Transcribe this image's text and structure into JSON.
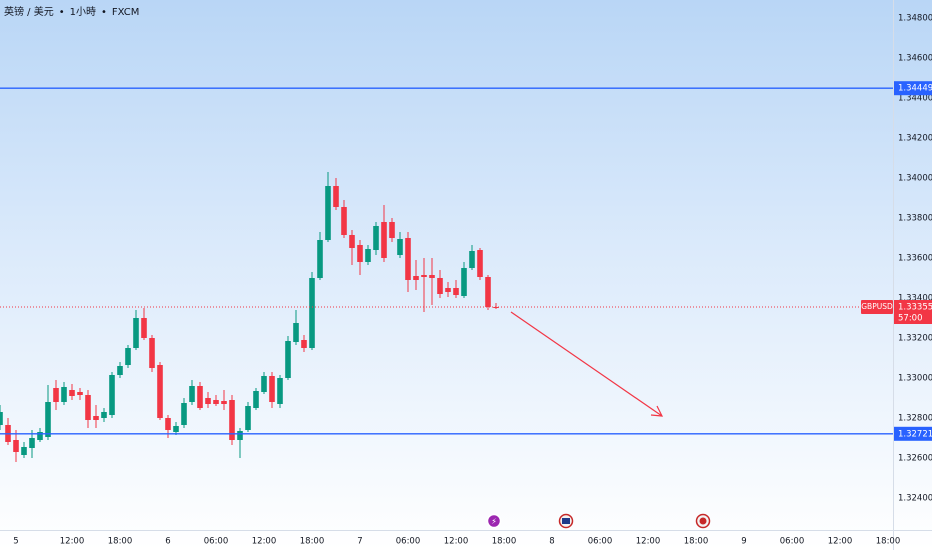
{
  "chart_data": {
    "type": "candlestick",
    "pair": "英镑 / 美元",
    "interval": "1小時",
    "source": "FXCM",
    "symbol": "GBPUSD",
    "countdown": "57:00",
    "up_color": "#089981",
    "down_color": "#f23645",
    "grid": false,
    "x": [
      3,
      4,
      5,
      6,
      7,
      8,
      9,
      10,
      11,
      12,
      13,
      14,
      15,
      16,
      17,
      18,
      19,
      20,
      21,
      22,
      23,
      24,
      25,
      26,
      27,
      28,
      29,
      30,
      31,
      32,
      33,
      34,
      35,
      36,
      37,
      38,
      39,
      40,
      41,
      42,
      43,
      44,
      45,
      46,
      47,
      48,
      49,
      50,
      51,
      52,
      53,
      54,
      55,
      56,
      57,
      58,
      59,
      60,
      61,
      62,
      63,
      64,
      65
    ],
    "open": [
      1.32765,
      1.32765,
      1.3269,
      1.32615,
      1.3265,
      1.3269,
      1.32705,
      1.3295,
      1.3288,
      1.3294,
      1.3293,
      1.32915,
      1.3281,
      1.328,
      1.32815,
      1.33015,
      1.33065,
      1.3315,
      1.333,
      1.332,
      1.33065,
      1.328,
      1.3273,
      1.32765,
      1.3288,
      1.3296,
      1.329,
      1.3289,
      1.32885,
      1.3289,
      1.3269,
      1.3274,
      1.3285,
      1.3293,
      1.3301,
      1.3287,
      1.33,
      1.3318,
      1.3319,
      1.3315,
      1.335,
      1.3369,
      1.3396,
      1.33855,
      1.33715,
      1.33665,
      1.3358,
      1.3364,
      1.3378,
      1.3378,
      1.33615,
      1.337,
      1.3351,
      1.33515,
      1.33515,
      1.335,
      1.3345,
      1.3345,
      1.3341,
      1.3355,
      1.3364,
      1.33505,
      1.33355
    ],
    "high": [
      1.32865,
      1.328,
      1.3274,
      1.3268,
      1.3274,
      1.3275,
      1.32965,
      1.3299,
      1.3298,
      1.3297,
      1.3295,
      1.3294,
      1.32865,
      1.3285,
      1.3303,
      1.3308,
      1.33165,
      1.3334,
      1.3335,
      1.33215,
      1.3308,
      1.32815,
      1.3278,
      1.329,
      1.3299,
      1.3298,
      1.3293,
      1.32915,
      1.3294,
      1.32915,
      1.3275,
      1.3288,
      1.3295,
      1.3303,
      1.3303,
      1.33015,
      1.3321,
      1.3334,
      1.33215,
      1.3353,
      1.3373,
      1.3403,
      1.34,
      1.3389,
      1.3374,
      1.3369,
      1.33665,
      1.3378,
      1.33865,
      1.338,
      1.3373,
      1.3373,
      1.3359,
      1.336,
      1.336,
      1.3354,
      1.3348,
      1.3349,
      1.3358,
      1.33665,
      1.3365,
      1.33515,
      1.33375
    ],
    "low": [
      1.3274,
      1.32665,
      1.3258,
      1.326,
      1.326,
      1.3268,
      1.3269,
      1.3284,
      1.32865,
      1.3289,
      1.3289,
      1.3275,
      1.3275,
      1.3278,
      1.328,
      1.33,
      1.3305,
      1.3314,
      1.3319,
      1.3303,
      1.3279,
      1.327,
      1.32715,
      1.3275,
      1.32865,
      1.3284,
      1.3285,
      1.3286,
      1.3284,
      1.32665,
      1.326,
      1.3273,
      1.3284,
      1.3292,
      1.3285,
      1.3285,
      1.3299,
      1.33165,
      1.3313,
      1.3314,
      1.3349,
      1.3368,
      1.3384,
      1.337,
      1.33565,
      1.33515,
      1.33565,
      1.33615,
      1.3358,
      1.3368,
      1.336,
      1.3343,
      1.3344,
      1.3333,
      1.33365,
      1.334,
      1.33405,
      1.334,
      1.334,
      1.3354,
      1.3349,
      1.3334,
      1.33345
    ],
    "close": [
      1.3283,
      1.3268,
      1.3263,
      1.32655,
      1.327,
      1.3273,
      1.3288,
      1.3288,
      1.32955,
      1.3291,
      1.32915,
      1.3279,
      1.3279,
      1.3283,
      1.33015,
      1.3306,
      1.3315,
      1.333,
      1.332,
      1.3305,
      1.328,
      1.3274,
      1.3276,
      1.32875,
      1.3296,
      1.3285,
      1.3287,
      1.3287,
      1.3287,
      1.3269,
      1.32735,
      1.3286,
      1.32935,
      1.3301,
      1.3288,
      1.33,
      1.33185,
      1.33275,
      1.3315,
      1.335,
      1.3369,
      1.3396,
      1.33855,
      1.33715,
      1.3365,
      1.3358,
      1.33645,
      1.3376,
      1.336,
      1.337,
      1.33695,
      1.3349,
      1.3349,
      1.33505,
      1.335,
      1.3342,
      1.3343,
      1.33415,
      1.3355,
      1.33635,
      1.33505,
      1.33355,
      1.33355
    ],
    "xlim": [
      3,
      114.625
    ],
    "xticks": [
      {
        "value": 0,
        "label": "5"
      },
      {
        "value": 12,
        "label": "12:00"
      },
      {
        "value": 18,
        "label": "18:00"
      },
      {
        "value": 24,
        "label": "6"
      },
      {
        "value": 30,
        "label": "06:00"
      },
      {
        "value": 36,
        "label": "12:00"
      },
      {
        "value": 42,
        "label": "18:00"
      },
      {
        "value": 48,
        "label": "7"
      },
      {
        "value": 54,
        "label": "06:00"
      },
      {
        "value": 60,
        "label": "12:00"
      },
      {
        "value": 66,
        "label": "18:00"
      },
      {
        "value": 72,
        "label": "8"
      },
      {
        "value": 78,
        "label": "06:00"
      },
      {
        "value": 84,
        "label": "12:00"
      },
      {
        "value": 90,
        "label": "18:00"
      },
      {
        "value": 96,
        "label": "9"
      },
      {
        "value": 102,
        "label": "06:00"
      },
      {
        "value": 108,
        "label": "12:00"
      },
      {
        "value": 114,
        "label": "18:00"
      }
    ],
    "ylim": [
      1.3224,
      1.3489
    ],
    "yticks": [
      {
        "value": 1.348,
        "label": "1.34800"
      },
      {
        "value": 1.346,
        "label": "1.34600"
      },
      {
        "value": 1.344,
        "label": "1.34400"
      },
      {
        "value": 1.342,
        "label": "1.34200"
      },
      {
        "value": 1.34,
        "label": "1.34000"
      },
      {
        "value": 1.338,
        "label": "1.33800"
      },
      {
        "value": 1.336,
        "label": "1.33600"
      },
      {
        "value": 1.334,
        "label": "1.33400"
      },
      {
        "value": 1.332,
        "label": "1.33200"
      },
      {
        "value": 1.33,
        "label": "1.33000"
      },
      {
        "value": 1.328,
        "label": "1.32800"
      },
      {
        "value": 1.326,
        "label": "1.32600"
      },
      {
        "value": 1.324,
        "label": "1.32400"
      }
    ],
    "last_price": 1.33355,
    "levels": [
      {
        "value": 1.34449,
        "color": "#2962ff"
      },
      {
        "value": 1.32721,
        "color": "#2962ff"
      }
    ]
  }
}
